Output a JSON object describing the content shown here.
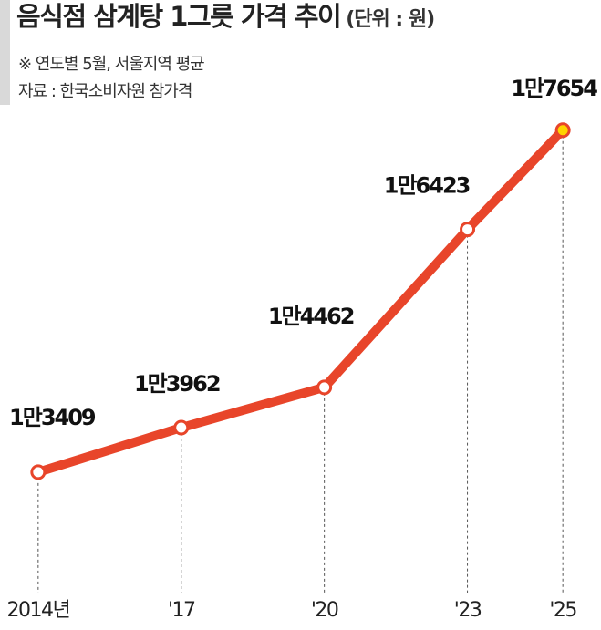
{
  "chart_data": {
    "type": "line",
    "title": "음식점 삼계탕 1그릇 가격 추이",
    "unit": "(단위 : 원)",
    "notes": [
      "※ 연도별 5월, 서울지역 평균",
      "자료 : 한국소비자원 참가격"
    ],
    "x": [
      2014,
      2017,
      2020,
      2023,
      2025
    ],
    "series": [
      {
        "color": "#e8452a",
        "values": [
          13409,
          13962,
          14462,
          16423,
          17654
        ],
        "value_labels": [
          "1만3409",
          "1만3962",
          "1만4462",
          "1만6423",
          "1만7654"
        ]
      }
    ],
    "highlight_color": "#ffd400",
    "xlim": [
      2013.2,
      2025.8
    ],
    "xticks": [
      {
        "value": 2014,
        "label": "2014년"
      },
      {
        "value": 2017,
        "label": "'17"
      },
      {
        "value": 2020,
        "label": "'20"
      },
      {
        "value": 2023,
        "label": "'23"
      },
      {
        "value": 2025,
        "label": "'25"
      }
    ],
    "ylim": [
      11450,
      19270
    ]
  }
}
